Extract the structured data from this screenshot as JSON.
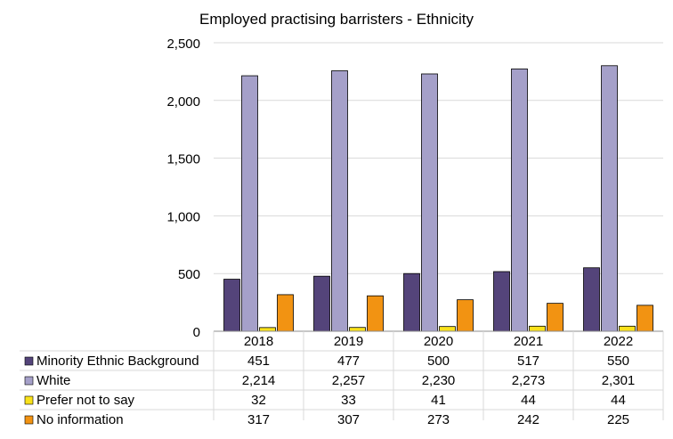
{
  "chart_data": {
    "type": "bar",
    "title": "Employed practising barristers - Ethnicity",
    "xlabel": "",
    "ylabel": "",
    "ylim": [
      0,
      2500
    ],
    "yticks": [
      0,
      500,
      1000,
      1500,
      2000,
      2500
    ],
    "ytick_labels": [
      "0",
      "500",
      "1,000",
      "1,500",
      "2,000",
      "2,500"
    ],
    "categories": [
      "2018",
      "2019",
      "2020",
      "2021",
      "2022"
    ],
    "grid": true,
    "legend": "data-table-below",
    "series": [
      {
        "name": "Minority Ethnic Background",
        "color": "#54447a",
        "values": [
          451,
          477,
          500,
          517,
          550
        ],
        "labels": [
          "451",
          "477",
          "500",
          "517",
          "550"
        ]
      },
      {
        "name": "White",
        "color": "#a5a0c9",
        "values": [
          2214,
          2257,
          2230,
          2273,
          2301
        ],
        "labels": [
          "2,214",
          "2,257",
          "2,230",
          "2,273",
          "2,301"
        ]
      },
      {
        "name": "Prefer not to say",
        "color": "#f9e11b",
        "values": [
          32,
          33,
          41,
          44,
          44
        ],
        "labels": [
          "32",
          "33",
          "41",
          "44",
          "44"
        ]
      },
      {
        "name": "No information",
        "color": "#f29312",
        "values": [
          317,
          307,
          273,
          242,
          225
        ],
        "labels": [
          "317",
          "307",
          "273",
          "242",
          "225"
        ]
      }
    ]
  }
}
